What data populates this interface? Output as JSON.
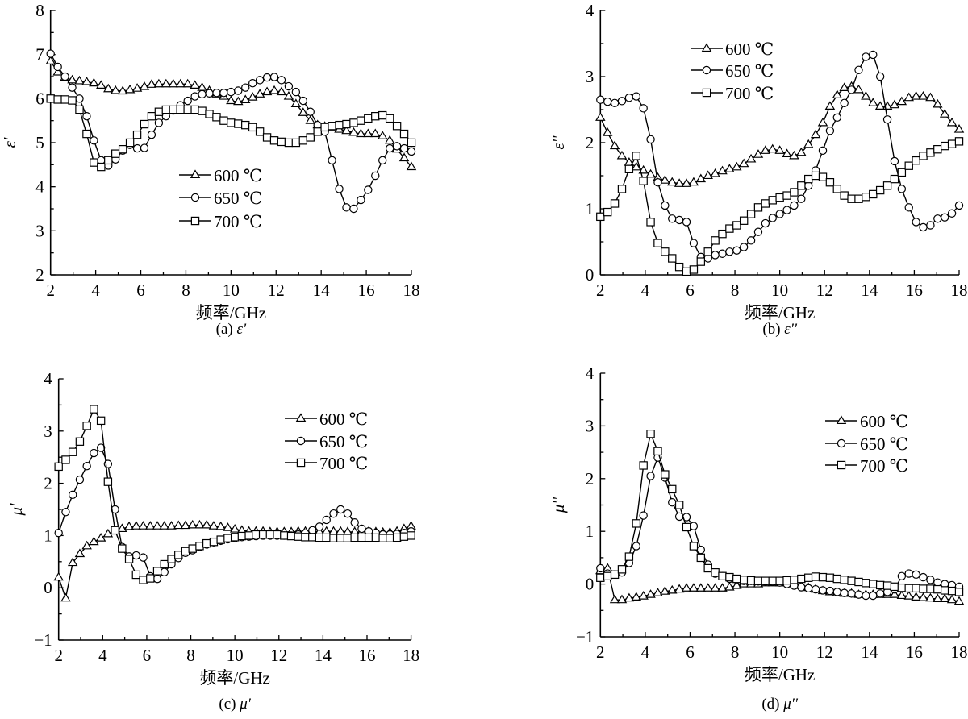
{
  "chart_data": [
    {
      "id": "a",
      "type": "line",
      "caption_prefix": "(a)",
      "caption_symbol": "ε'",
      "ylabel": "ε'",
      "xlabel": "频率/GHz",
      "xlim": [
        2,
        18
      ],
      "ylim": [
        2,
        8
      ],
      "xticks": [
        2,
        4,
        6,
        8,
        10,
        12,
        14,
        16,
        18
      ],
      "yticks": [
        2,
        3,
        4,
        5,
        6,
        7,
        8
      ],
      "legend_placement": "center",
      "x": [
        2,
        2.32,
        2.64,
        2.96,
        3.28,
        3.6,
        3.92,
        4.24,
        4.56,
        4.88,
        5.2,
        5.52,
        5.84,
        6.16,
        6.48,
        6.8,
        7.12,
        7.44,
        7.76,
        8.08,
        8.4,
        8.72,
        9.04,
        9.36,
        9.68,
        10,
        10.32,
        10.64,
        10.96,
        11.28,
        11.6,
        11.92,
        12.24,
        12.56,
        12.88,
        13.2,
        13.52,
        13.84,
        14.16,
        14.48,
        14.8,
        15.12,
        15.44,
        15.76,
        16.08,
        16.4,
        16.72,
        17.04,
        17.36,
        17.68,
        18
      ],
      "series": [
        {
          "name": "600 ℃",
          "marker": "triangle",
          "values": [
            6.85,
            6.6,
            6.48,
            6.42,
            6.4,
            6.38,
            6.35,
            6.3,
            6.22,
            6.18,
            6.17,
            6.2,
            6.23,
            6.27,
            6.32,
            6.33,
            6.33,
            6.33,
            6.33,
            6.33,
            6.3,
            6.25,
            6.18,
            6.1,
            6.05,
            5.95,
            5.93,
            5.97,
            6.03,
            6.1,
            6.15,
            6.18,
            6.15,
            6.05,
            5.88,
            5.68,
            5.5,
            5.4,
            5.37,
            5.35,
            5.3,
            5.27,
            5.23,
            5.2,
            5.2,
            5.2,
            5.15,
            5.05,
            4.85,
            4.65,
            4.45
          ]
        },
        {
          "name": "650 ℃",
          "marker": "circle",
          "values": [
            7.02,
            6.72,
            6.5,
            6.25,
            6.0,
            5.6,
            5.05,
            4.6,
            4.48,
            4.62,
            4.82,
            4.95,
            4.87,
            4.88,
            5.18,
            5.45,
            5.6,
            5.73,
            5.85,
            5.95,
            6.05,
            6.1,
            6.12,
            6.13,
            6.13,
            6.15,
            6.18,
            6.25,
            6.35,
            6.42,
            6.48,
            6.49,
            6.42,
            6.28,
            6.15,
            5.95,
            5.7,
            5.4,
            5.25,
            4.6,
            3.95,
            3.53,
            3.5,
            3.7,
            3.93,
            4.25,
            4.6,
            4.87,
            4.92,
            4.87,
            4.8
          ]
        },
        {
          "name": "700 ℃",
          "marker": "square",
          "values": [
            6.0,
            5.98,
            5.98,
            5.96,
            5.75,
            5.2,
            4.55,
            4.45,
            4.6,
            4.75,
            4.85,
            5.0,
            5.18,
            5.42,
            5.6,
            5.7,
            5.75,
            5.75,
            5.75,
            5.75,
            5.75,
            5.72,
            5.65,
            5.58,
            5.5,
            5.45,
            5.43,
            5.4,
            5.35,
            5.25,
            5.12,
            5.05,
            5.02,
            5.0,
            5.0,
            5.05,
            5.12,
            5.25,
            5.35,
            5.38,
            5.4,
            5.42,
            5.45,
            5.5,
            5.55,
            5.6,
            5.62,
            5.55,
            5.38,
            5.2,
            5.0
          ]
        }
      ]
    },
    {
      "id": "b",
      "type": "line",
      "caption_prefix": "(b)",
      "caption_symbol": "ε''",
      "ylabel": "ε''",
      "xlabel": "频率/GHz",
      "xlim": [
        2,
        18
      ],
      "ylim": [
        0,
        4
      ],
      "xticks": [
        2,
        4,
        6,
        8,
        10,
        12,
        14,
        16,
        18
      ],
      "yticks": [
        0,
        1,
        2,
        3,
        4
      ],
      "legend_placement": "top-left",
      "x": [
        2,
        2.32,
        2.64,
        2.96,
        3.28,
        3.6,
        3.92,
        4.24,
        4.56,
        4.88,
        5.2,
        5.52,
        5.84,
        6.16,
        6.48,
        6.8,
        7.12,
        7.44,
        7.76,
        8.08,
        8.4,
        8.72,
        9.04,
        9.36,
        9.68,
        10,
        10.32,
        10.64,
        10.96,
        11.28,
        11.6,
        11.92,
        12.24,
        12.56,
        12.88,
        13.2,
        13.52,
        13.84,
        14.16,
        14.48,
        14.8,
        15.12,
        15.44,
        15.76,
        16.08,
        16.4,
        16.72,
        17.04,
        17.36,
        17.68,
        18
      ],
      "series": [
        {
          "name": "600 ℃",
          "marker": "triangle",
          "values": [
            2.38,
            2.15,
            1.95,
            1.8,
            1.7,
            1.63,
            1.58,
            1.52,
            1.47,
            1.43,
            1.4,
            1.38,
            1.38,
            1.4,
            1.45,
            1.5,
            1.53,
            1.57,
            1.6,
            1.63,
            1.68,
            1.75,
            1.82,
            1.88,
            1.9,
            1.88,
            1.83,
            1.8,
            1.85,
            1.97,
            2.12,
            2.3,
            2.55,
            2.72,
            2.83,
            2.85,
            2.8,
            2.7,
            2.6,
            2.55,
            2.55,
            2.57,
            2.62,
            2.68,
            2.7,
            2.7,
            2.68,
            2.58,
            2.43,
            2.3,
            2.2
          ]
        },
        {
          "name": "650 ℃",
          "marker": "circle",
          "values": [
            2.65,
            2.62,
            2.6,
            2.63,
            2.68,
            2.7,
            2.52,
            2.05,
            1.4,
            1.05,
            0.85,
            0.83,
            0.8,
            0.48,
            0.27,
            0.25,
            0.3,
            0.32,
            0.35,
            0.37,
            0.42,
            0.52,
            0.65,
            0.78,
            0.86,
            0.92,
            0.98,
            1.05,
            1.15,
            1.35,
            1.58,
            1.88,
            2.18,
            2.38,
            2.6,
            2.8,
            3.1,
            3.3,
            3.33,
            3.0,
            2.35,
            1.72,
            1.3,
            1.02,
            0.8,
            0.72,
            0.75,
            0.85,
            0.87,
            0.93,
            1.05
          ]
        },
        {
          "name": "700 ℃",
          "marker": "square",
          "values": [
            0.88,
            0.95,
            1.08,
            1.3,
            1.6,
            1.8,
            1.42,
            0.8,
            0.48,
            0.35,
            0.25,
            0.12,
            0.05,
            0.08,
            0.2,
            0.35,
            0.52,
            0.62,
            0.7,
            0.75,
            0.82,
            0.92,
            1.02,
            1.08,
            1.13,
            1.17,
            1.2,
            1.25,
            1.35,
            1.45,
            1.5,
            1.48,
            1.4,
            1.3,
            1.2,
            1.15,
            1.15,
            1.18,
            1.22,
            1.28,
            1.35,
            1.45,
            1.55,
            1.65,
            1.73,
            1.8,
            1.85,
            1.9,
            1.95,
            1.98,
            2.02
          ]
        }
      ]
    },
    {
      "id": "c",
      "type": "line",
      "caption_prefix": "(c)",
      "caption_symbol": "μ'",
      "ylabel": "μ'",
      "xlabel": "频率/GHz",
      "xlim": [
        2,
        18
      ],
      "ylim": [
        -1,
        4
      ],
      "xticks": [
        2,
        4,
        6,
        8,
        10,
        12,
        14,
        16,
        18
      ],
      "yticks": [
        -1,
        0,
        1,
        2,
        3,
        4
      ],
      "ytick_labels": [
        "−1",
        "0",
        "1",
        "2",
        "3",
        "4"
      ],
      "legend_placement": "top-right",
      "x": [
        2,
        2.32,
        2.64,
        2.96,
        3.28,
        3.6,
        3.92,
        4.24,
        4.56,
        4.88,
        5.2,
        5.52,
        5.84,
        6.16,
        6.48,
        6.8,
        7.12,
        7.44,
        7.76,
        8.08,
        8.4,
        8.72,
        9.04,
        9.36,
        9.68,
        10,
        10.32,
        10.64,
        10.96,
        11.28,
        11.6,
        11.92,
        12.24,
        12.56,
        12.88,
        13.2,
        13.52,
        13.84,
        14.16,
        14.48,
        14.8,
        15.12,
        15.44,
        15.76,
        16.08,
        16.4,
        16.72,
        17.04,
        17.36,
        17.68,
        18
      ],
      "series": [
        {
          "name": "600 ℃",
          "marker": "triangle",
          "values": [
            0.2,
            -0.2,
            0.48,
            0.65,
            0.8,
            0.88,
            0.95,
            1.03,
            1.1,
            1.13,
            1.17,
            1.18,
            1.18,
            1.18,
            1.18,
            1.18,
            1.18,
            1.19,
            1.19,
            1.2,
            1.2,
            1.2,
            1.18,
            1.17,
            1.15,
            1.12,
            1.1,
            1.08,
            1.08,
            1.08,
            1.07,
            1.07,
            1.07,
            1.07,
            1.08,
            1.08,
            1.08,
            1.07,
            1.08,
            1.08,
            1.08,
            1.07,
            1.07,
            1.07,
            1.08,
            1.07,
            1.06,
            1.06,
            1.08,
            1.13,
            1.18
          ]
        },
        {
          "name": "650 ℃",
          "marker": "circle",
          "values": [
            1.05,
            1.45,
            1.78,
            2.07,
            2.33,
            2.58,
            2.68,
            2.37,
            1.5,
            0.78,
            0.6,
            0.62,
            0.58,
            0.22,
            0.17,
            0.3,
            0.45,
            0.57,
            0.67,
            0.72,
            0.78,
            0.83,
            0.87,
            0.9,
            0.93,
            0.95,
            0.97,
            0.98,
            0.99,
            1.0,
            1.0,
            1.0,
            1.0,
            1.0,
            1.02,
            1.04,
            1.1,
            1.17,
            1.3,
            1.42,
            1.5,
            1.42,
            1.25,
            1.13,
            1.08,
            1.05,
            1.02,
            1.02,
            1.03,
            1.05,
            1.08
          ]
        },
        {
          "name": "700 ℃",
          "marker": "square",
          "values": [
            2.32,
            2.45,
            2.6,
            2.8,
            3.1,
            3.42,
            3.2,
            2.03,
            1.1,
            0.75,
            0.55,
            0.25,
            0.15,
            0.18,
            0.32,
            0.45,
            0.55,
            0.63,
            0.7,
            0.75,
            0.8,
            0.85,
            0.88,
            0.92,
            0.95,
            0.97,
            0.99,
            1.0,
            1.02,
            1.02,
            1.02,
            1.02,
            1.0,
            0.99,
            0.98,
            0.97,
            0.97,
            0.96,
            0.96,
            0.95,
            0.95,
            0.95,
            0.96,
            0.96,
            0.96,
            0.96,
            0.95,
            0.95,
            0.96,
            0.98,
            1.0
          ]
        }
      ]
    },
    {
      "id": "d",
      "type": "line",
      "caption_prefix": "(d)",
      "caption_symbol": "μ''",
      "ylabel": "μ''",
      "xlabel": "频率/GHz",
      "xlim": [
        2,
        18
      ],
      "ylim": [
        -1,
        4
      ],
      "xticks": [
        2,
        4,
        6,
        8,
        10,
        12,
        14,
        16,
        18
      ],
      "yticks": [
        -1,
        0,
        1,
        2,
        3,
        4
      ],
      "ytick_labels": [
        "−1",
        "0",
        "1",
        "2",
        "3",
        "4"
      ],
      "legend_placement": "top-right",
      "x": [
        2,
        2.32,
        2.64,
        2.96,
        3.28,
        3.6,
        3.92,
        4.24,
        4.56,
        4.88,
        5.2,
        5.52,
        5.84,
        6.16,
        6.48,
        6.8,
        7.12,
        7.44,
        7.76,
        8.08,
        8.4,
        8.72,
        9.04,
        9.36,
        9.68,
        10,
        10.32,
        10.64,
        10.96,
        11.28,
        11.6,
        11.92,
        12.24,
        12.56,
        12.88,
        13.2,
        13.52,
        13.84,
        14.16,
        14.48,
        14.8,
        15.12,
        15.44,
        15.76,
        16.08,
        16.4,
        16.72,
        17.04,
        17.36,
        17.68,
        18
      ],
      "series": [
        {
          "name": "600 ℃",
          "marker": "triangle",
          "values": [
            0.25,
            0.3,
            -0.3,
            -0.3,
            -0.27,
            -0.25,
            -0.23,
            -0.2,
            -0.17,
            -0.14,
            -0.12,
            -0.1,
            -0.08,
            -0.08,
            -0.08,
            -0.08,
            -0.08,
            -0.08,
            -0.06,
            -0.03,
            0.0,
            0.0,
            0.0,
            0.02,
            0.02,
            0.02,
            0.02,
            0.0,
            -0.03,
            -0.07,
            -0.1,
            -0.13,
            -0.15,
            -0.17,
            -0.18,
            -0.18,
            -0.2,
            -0.2,
            -0.2,
            -0.2,
            -0.2,
            -0.2,
            -0.22,
            -0.23,
            -0.25,
            -0.26,
            -0.27,
            -0.28,
            -0.28,
            -0.3,
            -0.33
          ]
        },
        {
          "name": "650 ℃",
          "marker": "circle",
          "values": [
            0.3,
            0.2,
            0.18,
            0.22,
            0.4,
            0.72,
            1.3,
            2.05,
            2.4,
            2.02,
            1.55,
            1.28,
            1.27,
            1.1,
            0.65,
            0.37,
            0.2,
            0.15,
            0.1,
            0.08,
            0.06,
            0.06,
            0.05,
            0.05,
            0.04,
            0.03,
            0.0,
            -0.03,
            -0.06,
            -0.08,
            -0.1,
            -0.12,
            -0.13,
            -0.15,
            -0.17,
            -0.18,
            -0.2,
            -0.22,
            -0.22,
            -0.18,
            -0.15,
            -0.1,
            0.15,
            0.2,
            0.18,
            0.13,
            0.08,
            0.03,
            0.0,
            -0.02,
            -0.05
          ]
        },
        {
          "name": "700 ℃",
          "marker": "square",
          "values": [
            0.12,
            0.15,
            0.18,
            0.28,
            0.52,
            1.15,
            2.25,
            2.85,
            2.52,
            2.08,
            1.8,
            1.5,
            1.08,
            0.72,
            0.5,
            0.3,
            0.22,
            0.15,
            0.13,
            0.1,
            0.08,
            0.07,
            0.06,
            0.06,
            0.06,
            0.06,
            0.07,
            0.08,
            0.1,
            0.12,
            0.14,
            0.13,
            0.12,
            0.1,
            0.08,
            0.06,
            0.04,
            0.02,
            0.0,
            -0.02,
            -0.03,
            -0.05,
            -0.07,
            -0.08,
            -0.08,
            -0.09,
            -0.09,
            -0.1,
            -0.12,
            -0.13,
            -0.15
          ]
        }
      ]
    }
  ]
}
